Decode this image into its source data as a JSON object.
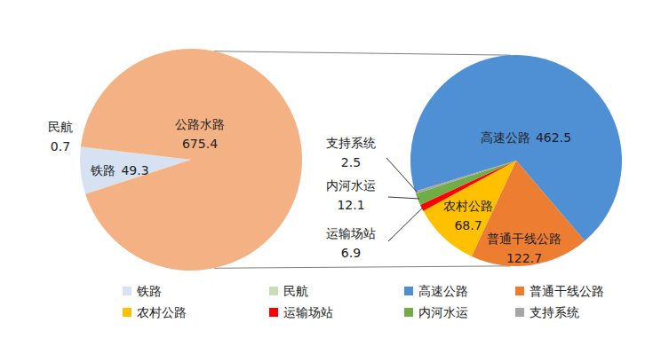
{
  "chart_data": [
    {
      "type": "pie",
      "categories": [
        "铁路",
        "民航",
        "公路水路"
      ],
      "values": [
        49.3,
        0.7,
        675.4
      ],
      "colors": [
        "#d6e2f2",
        "#c5e0b4",
        "#f4b183"
      ],
      "data_labels": true,
      "legend": "bottom"
    },
    {
      "type": "pie",
      "categories": [
        "高速公路",
        "普通干线公路",
        "农村公路",
        "运输场站",
        "内河水运",
        "支持系统"
      ],
      "values": [
        462.5,
        122.7,
        68.7,
        6.9,
        12.1,
        2.5
      ],
      "colors": [
        "#4f8fd3",
        "#ed7d31",
        "#ffc000",
        "#ff0000",
        "#70ad47",
        "#a5a5a5"
      ],
      "data_labels": true,
      "legend": "bottom"
    }
  ]
}
